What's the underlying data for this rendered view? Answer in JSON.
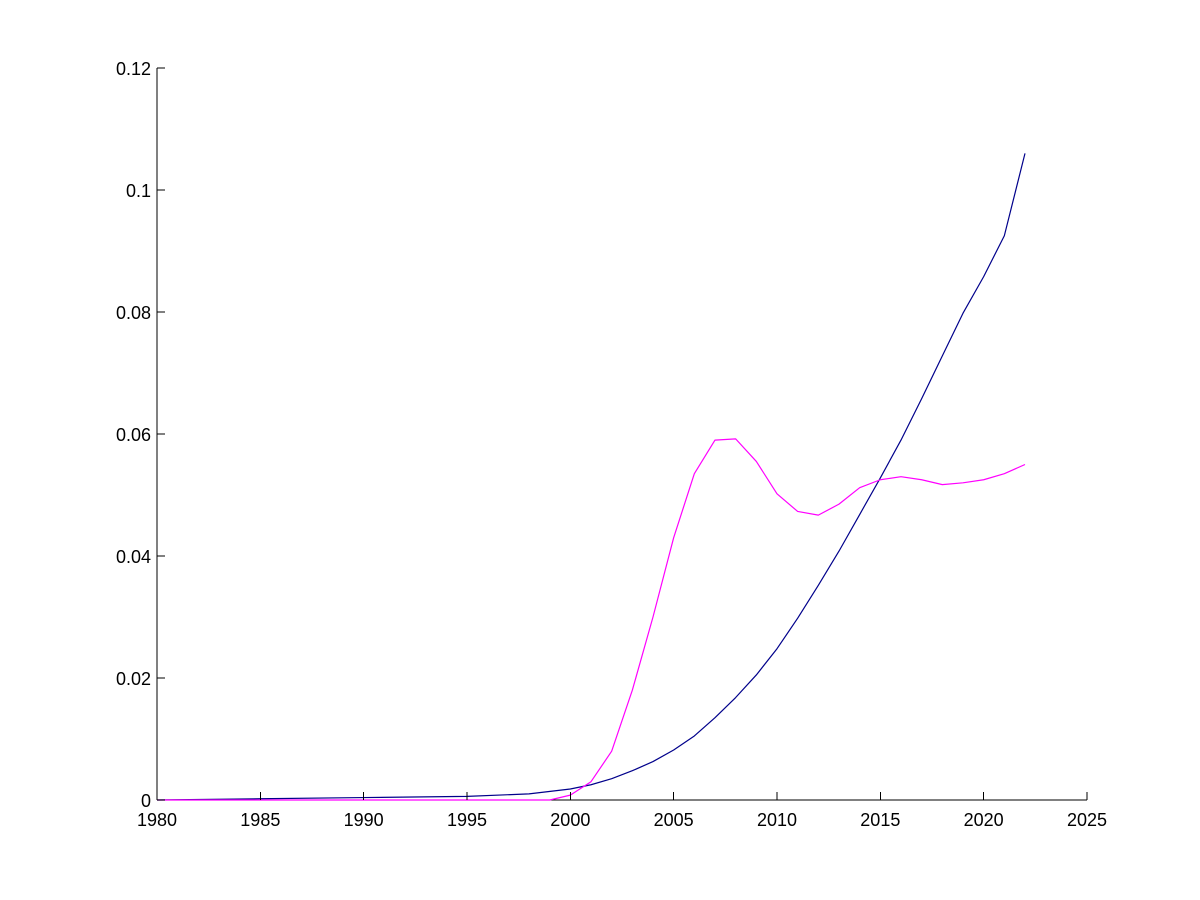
{
  "chart_data": {
    "type": "line",
    "title": "",
    "xlabel": "",
    "ylabel": "",
    "xlim": [
      1980,
      2025
    ],
    "ylim": [
      0,
      0.12
    ],
    "xticks": [
      1980,
      1985,
      1990,
      1995,
      2000,
      2005,
      2010,
      2015,
      2020,
      2025
    ],
    "xtick_labels": [
      "1980",
      "1985",
      "1990",
      "1995",
      "2000",
      "2005",
      "2010",
      "2015",
      "2020",
      "2025"
    ],
    "yticks": [
      0,
      0.02,
      0.04,
      0.06,
      0.08,
      0.1,
      0.12
    ],
    "ytick_labels": [
      "0",
      "0.02",
      "0.04",
      "0.06",
      "0.08",
      "0.1",
      "0.12"
    ],
    "grid": false,
    "legend": "none",
    "series": [
      {
        "color": "#00008b",
        "x": [
          1980,
          1985,
          1990,
          1995,
          1998,
          2000,
          2001,
          2002,
          2003,
          2004,
          2005,
          2006,
          2007,
          2008,
          2009,
          2010,
          2011,
          2012,
          2013,
          2014,
          2015,
          2016,
          2017,
          2018,
          2019,
          2020,
          2021,
          2022
        ],
        "y": [
          0,
          0.0002,
          0.0004,
          0.0006,
          0.001,
          0.0018,
          0.0025,
          0.0035,
          0.0048,
          0.0063,
          0.0082,
          0.0105,
          0.0135,
          0.0168,
          0.0205,
          0.0248,
          0.0298,
          0.0352,
          0.0408,
          0.0468,
          0.0528,
          0.059,
          0.0658,
          0.0728,
          0.0798,
          0.0858,
          0.0925,
          0.106
        ]
      },
      {
        "color": "#ff00ff",
        "x": [
          1980,
          1985,
          1990,
          1995,
          1999,
          2000,
          2001,
          2002,
          2003,
          2004,
          2005,
          2006,
          2007,
          2008,
          2009,
          2010,
          2011,
          2012,
          2013,
          2014,
          2015,
          2016,
          2017,
          2018,
          2019,
          2020,
          2021,
          2022
        ],
        "y": [
          0,
          0,
          0,
          0,
          0,
          0.0008,
          0.003,
          0.008,
          0.018,
          0.03,
          0.043,
          0.0535,
          0.059,
          0.0592,
          0.0555,
          0.0502,
          0.0473,
          0.0467,
          0.0485,
          0.0512,
          0.0525,
          0.053,
          0.0525,
          0.0517,
          0.052,
          0.0525,
          0.0535,
          0.055
        ]
      }
    ]
  }
}
